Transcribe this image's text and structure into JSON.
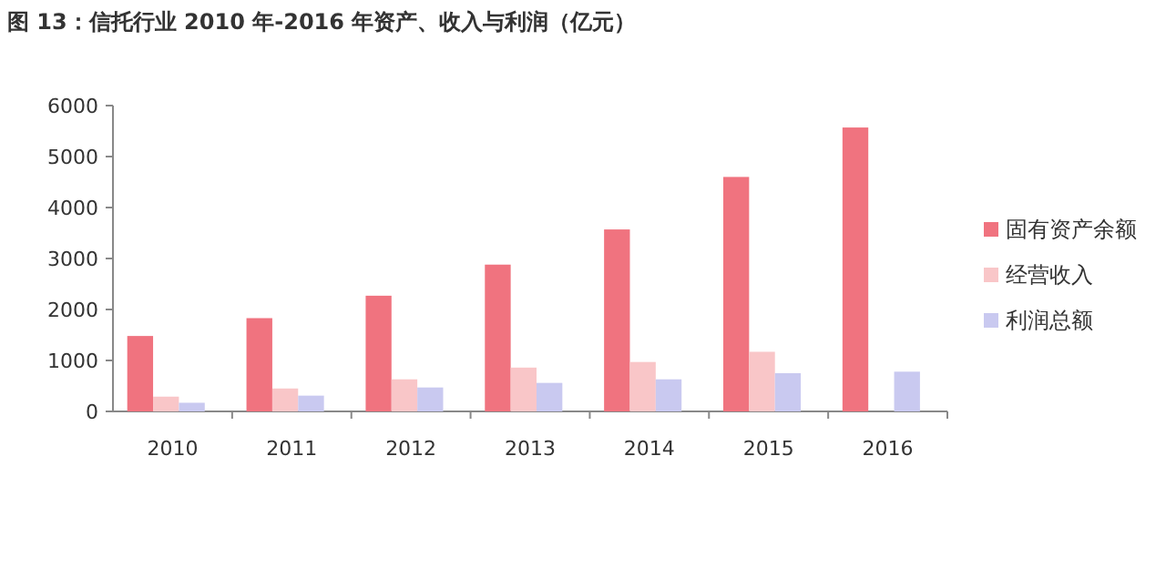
{
  "chart_data": {
    "type": "bar",
    "title": "图 13：信托行业 2010 年-2016 年资产、收入与利润（亿元）",
    "categories": [
      "2010",
      "2011",
      "2012",
      "2013",
      "2014",
      "2015",
      "2016"
    ],
    "series": [
      {
        "name": "固有资产余额",
        "color": "#f0737f",
        "values": [
          1480,
          1830,
          2270,
          2880,
          3570,
          4600,
          5570
        ]
      },
      {
        "name": "经营收入",
        "color": "#f9c6c8",
        "values": [
          290,
          450,
          630,
          860,
          970,
          1170,
          null
        ]
      },
      {
        "name": "利润总额",
        "color": "#c9c9f0",
        "values": [
          170,
          310,
          470,
          560,
          630,
          750,
          780
        ]
      }
    ],
    "ylim": [
      0,
      6000
    ],
    "yticks": [
      0,
      1000,
      2000,
      3000,
      4000,
      5000,
      6000
    ],
    "grid": false,
    "legend": "right"
  }
}
